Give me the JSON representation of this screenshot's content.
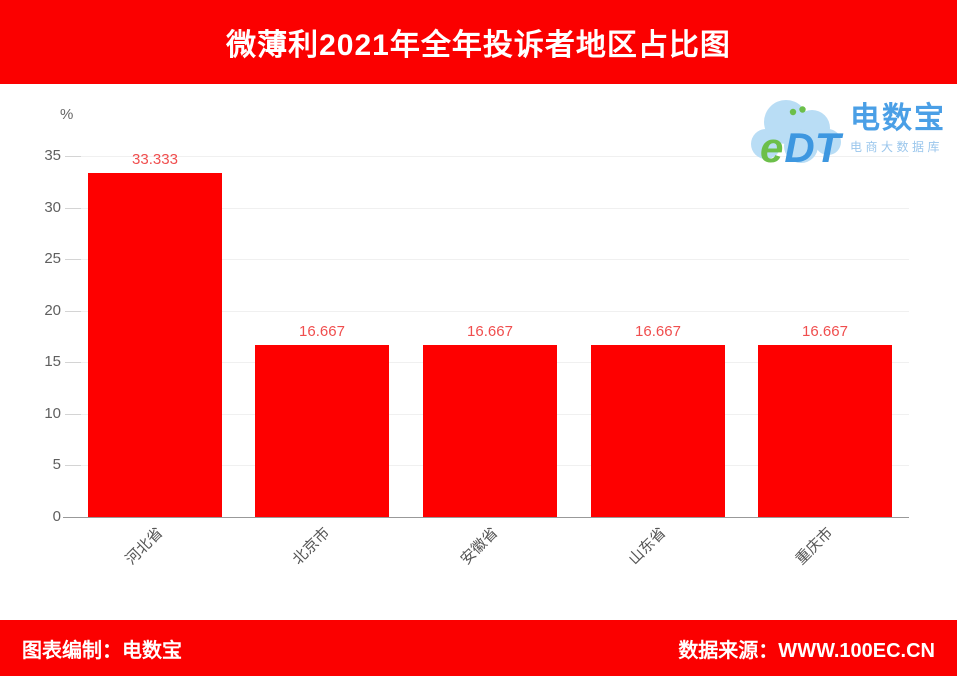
{
  "header": {
    "title": "微薄利2021年全年投诉者地区占比图",
    "bg_color": "#fb0000",
    "text_color": "#ffffff"
  },
  "logo": {
    "mark_e": "e",
    "mark_dt": "DT",
    "name": "电数宝",
    "tagline": "电商大数据库",
    "cloud_color": "#b9ddf5",
    "mark_e_color": "#6cbf4a",
    "mark_dt_color": "#3d97e0",
    "name_color": "#4a9fe6",
    "tagline_color": "#9ac6ec"
  },
  "chart_data": {
    "type": "bar",
    "title": "微薄利2021年全年投诉者地区占比图",
    "categories": [
      "河北省",
      "北京市",
      "安徽省",
      "山东省",
      "重庆市"
    ],
    "values": [
      33.333,
      16.667,
      16.667,
      16.667,
      16.667
    ],
    "value_labels": [
      "33.333",
      "16.667",
      "16.667",
      "16.667",
      "16.667"
    ],
    "xlabel": "",
    "ylabel": "%",
    "ylim": [
      0,
      35
    ],
    "yticks": [
      0,
      5,
      10,
      15,
      20,
      25,
      30,
      35
    ],
    "grid": true,
    "legend": false,
    "bar_color": "#fe0000",
    "value_label_color": "#f04e4e",
    "tick_label_color": "#5f5f5f",
    "axis_line_color": "#999999",
    "grid_color": "#f0f0f0"
  },
  "footer": {
    "left": "图表编制：电数宝",
    "right": "数据来源：WWW.100EC.CN",
    "bg_color": "#fb0000",
    "text_color": "#ffffff"
  }
}
